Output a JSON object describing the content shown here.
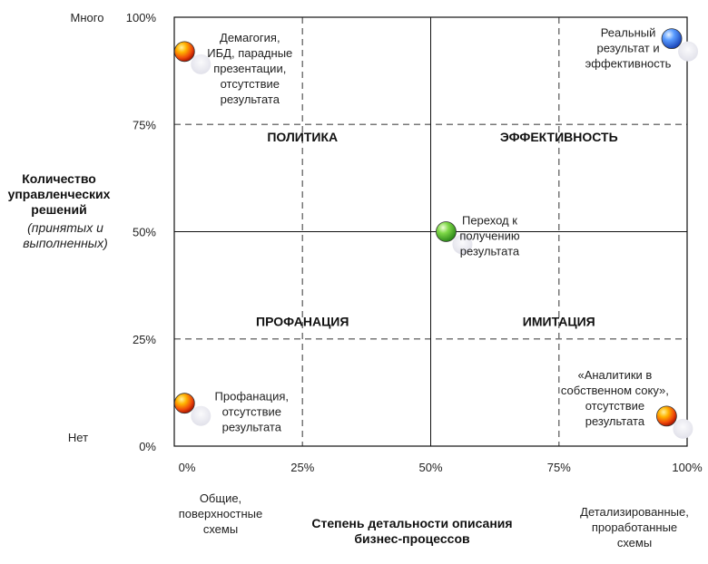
{
  "chart_data": {
    "type": "scatter",
    "title": "",
    "xlabel": [
      "Степень детальности описания",
      "бизнес-процессов"
    ],
    "ylabel_bold": [
      "Количество",
      "управленческих",
      "решений"
    ],
    "ylabel_italic": [
      "(принятых и",
      "выполненных)"
    ],
    "xlim": [
      0,
      100
    ],
    "ylim": [
      0,
      100
    ],
    "x_ticks": [
      {
        "value": 0,
        "label": "0%"
      },
      {
        "value": 25,
        "label": "25%"
      },
      {
        "value": 50,
        "label": "50%"
      },
      {
        "value": 75,
        "label": "75%"
      },
      {
        "value": 100,
        "label": "100%"
      }
    ],
    "y_ticks": [
      {
        "value": 0,
        "label": "0%"
      },
      {
        "value": 25,
        "label": "25%"
      },
      {
        "value": 50,
        "label": "50%"
      },
      {
        "value": 75,
        "label": "75%"
      },
      {
        "value": 100,
        "label": "100%"
      }
    ],
    "y_extreme_labels": {
      "top": "Много",
      "bottom": "Нет"
    },
    "x_extreme_labels": {
      "left": [
        "Общие,",
        "поверхностные",
        "схемы"
      ],
      "right": [
        "Детализированные,",
        "проработанные",
        "схемы"
      ]
    },
    "solid_lines": [
      50
    ],
    "dashed_lines": [
      25,
      75
    ],
    "quadrant_labels": [
      {
        "text": "ПОЛИТИКА",
        "x": 25,
        "y": 71
      },
      {
        "text": "ЭФФЕКТИВНОСТЬ",
        "x": 75,
        "y": 71
      },
      {
        "text": "ПРОФАНАЦИЯ",
        "x": 25,
        "y": 28
      },
      {
        "text": "ИМИТАЦИЯ",
        "x": 75,
        "y": 28
      }
    ],
    "points": [
      {
        "x": 2,
        "y": 92,
        "color": "red",
        "lines": [
          "Демагогия,",
          "ИБД, парадные",
          "презентации,",
          "отсутствие",
          "результата"
        ]
      },
      {
        "x": 97,
        "y": 95,
        "color": "blue",
        "lines": [
          "Реальный",
          "результат и",
          "эффективность"
        ]
      },
      {
        "x": 53,
        "y": 50,
        "color": "green",
        "lines": [
          "Переход к",
          "получению",
          "результата"
        ]
      },
      {
        "x": 2,
        "y": 10,
        "color": "red",
        "lines": [
          "Профанация,",
          "отсутствие",
          "результата"
        ]
      },
      {
        "x": 96,
        "y": 7,
        "color": "red",
        "lines": [
          "«Аналитики в",
          "собственном соку»,",
          "отсутствие",
          "результата"
        ]
      }
    ],
    "colors": {
      "red": "#e8400c",
      "blue": "#2f6fe0",
      "green": "#44b030",
      "grid": "#555555"
    }
  }
}
